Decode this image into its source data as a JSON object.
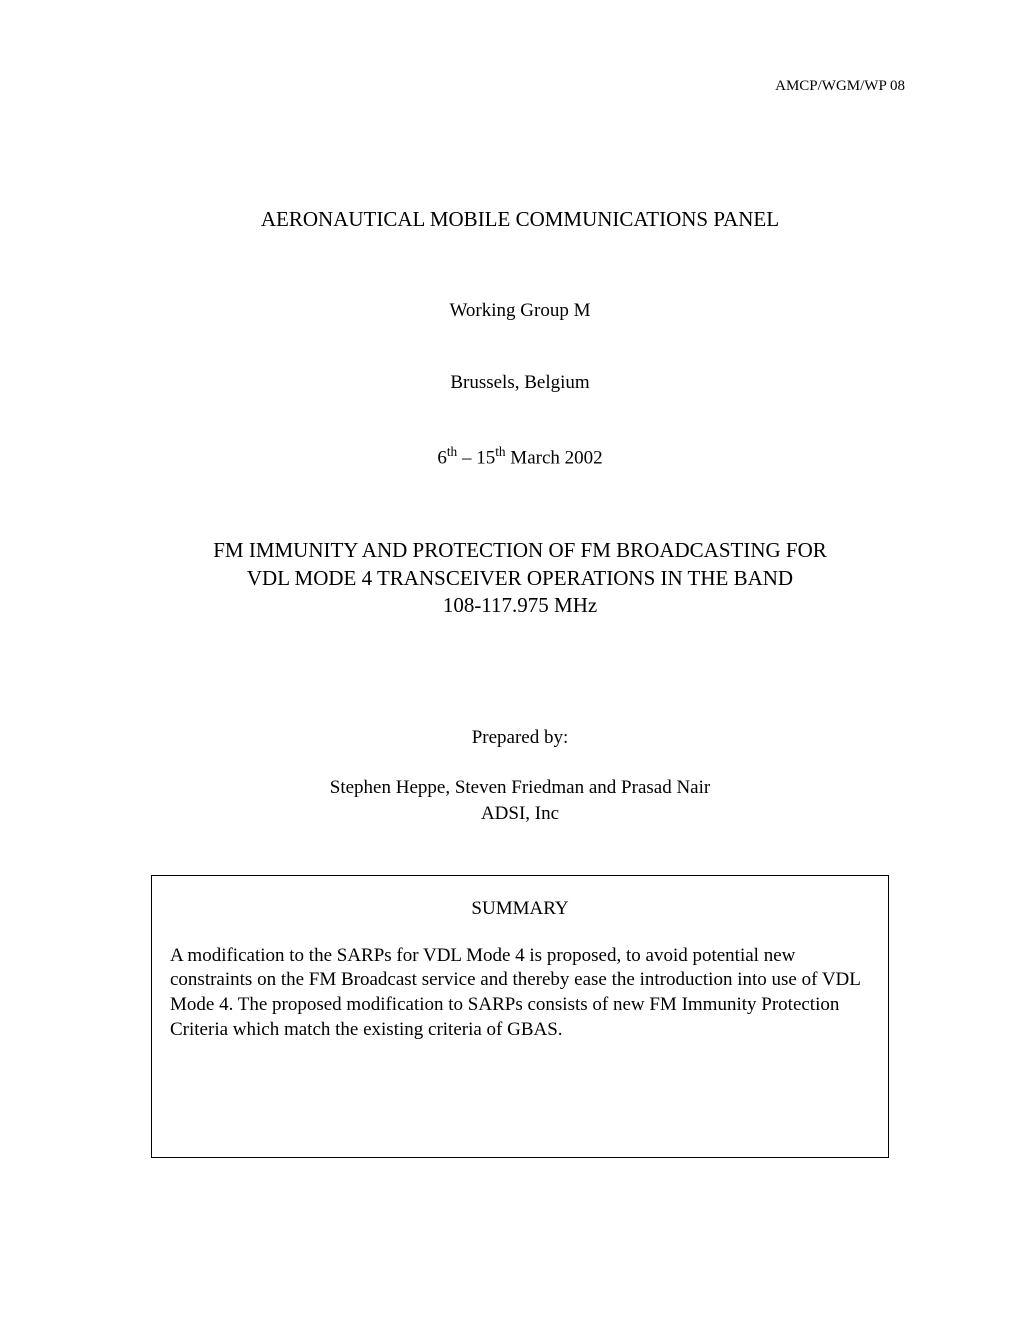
{
  "document_reference": "AMCP/WGM/WP 08",
  "main_title": "AERONAUTICAL MOBILE COMMUNICATIONS PANEL",
  "working_group": "Working Group M",
  "location": "Brussels, Belgium",
  "date_prefix": "6",
  "date_first_suffix": "th",
  "date_separator": " – 15",
  "date_second_suffix": "th",
  "date_rest": " March 2002",
  "paper_title_line1": "FM IMMUNITY AND PROTECTION OF FM BROADCASTING FOR",
  "paper_title_line2": "VDL MODE 4 TRANSCEIVER OPERATIONS IN THE BAND",
  "paper_title_line3": "108-117.975 MHz",
  "prepared_by_label": "Prepared by:",
  "authors_line1": "Stephen Heppe, Steven Friedman and Prasad Nair",
  "authors_line2": "ADSI, Inc",
  "summary_heading": "SUMMARY",
  "summary_body": "A modification to the SARPs for VDL Mode 4 is proposed, to avoid potential new constraints on the FM Broadcast service and thereby ease the introduction into use of VDL Mode 4. The proposed modification to SARPs consists of new FM Immunity Protection Criteria which match the existing criteria of GBAS.",
  "colors": {
    "background": "#ffffff",
    "text": "#000000",
    "border": "#000000"
  },
  "typography": {
    "font_family": "Times New Roman",
    "header_ref_size": 15,
    "title_size": 21,
    "body_size": 19
  }
}
